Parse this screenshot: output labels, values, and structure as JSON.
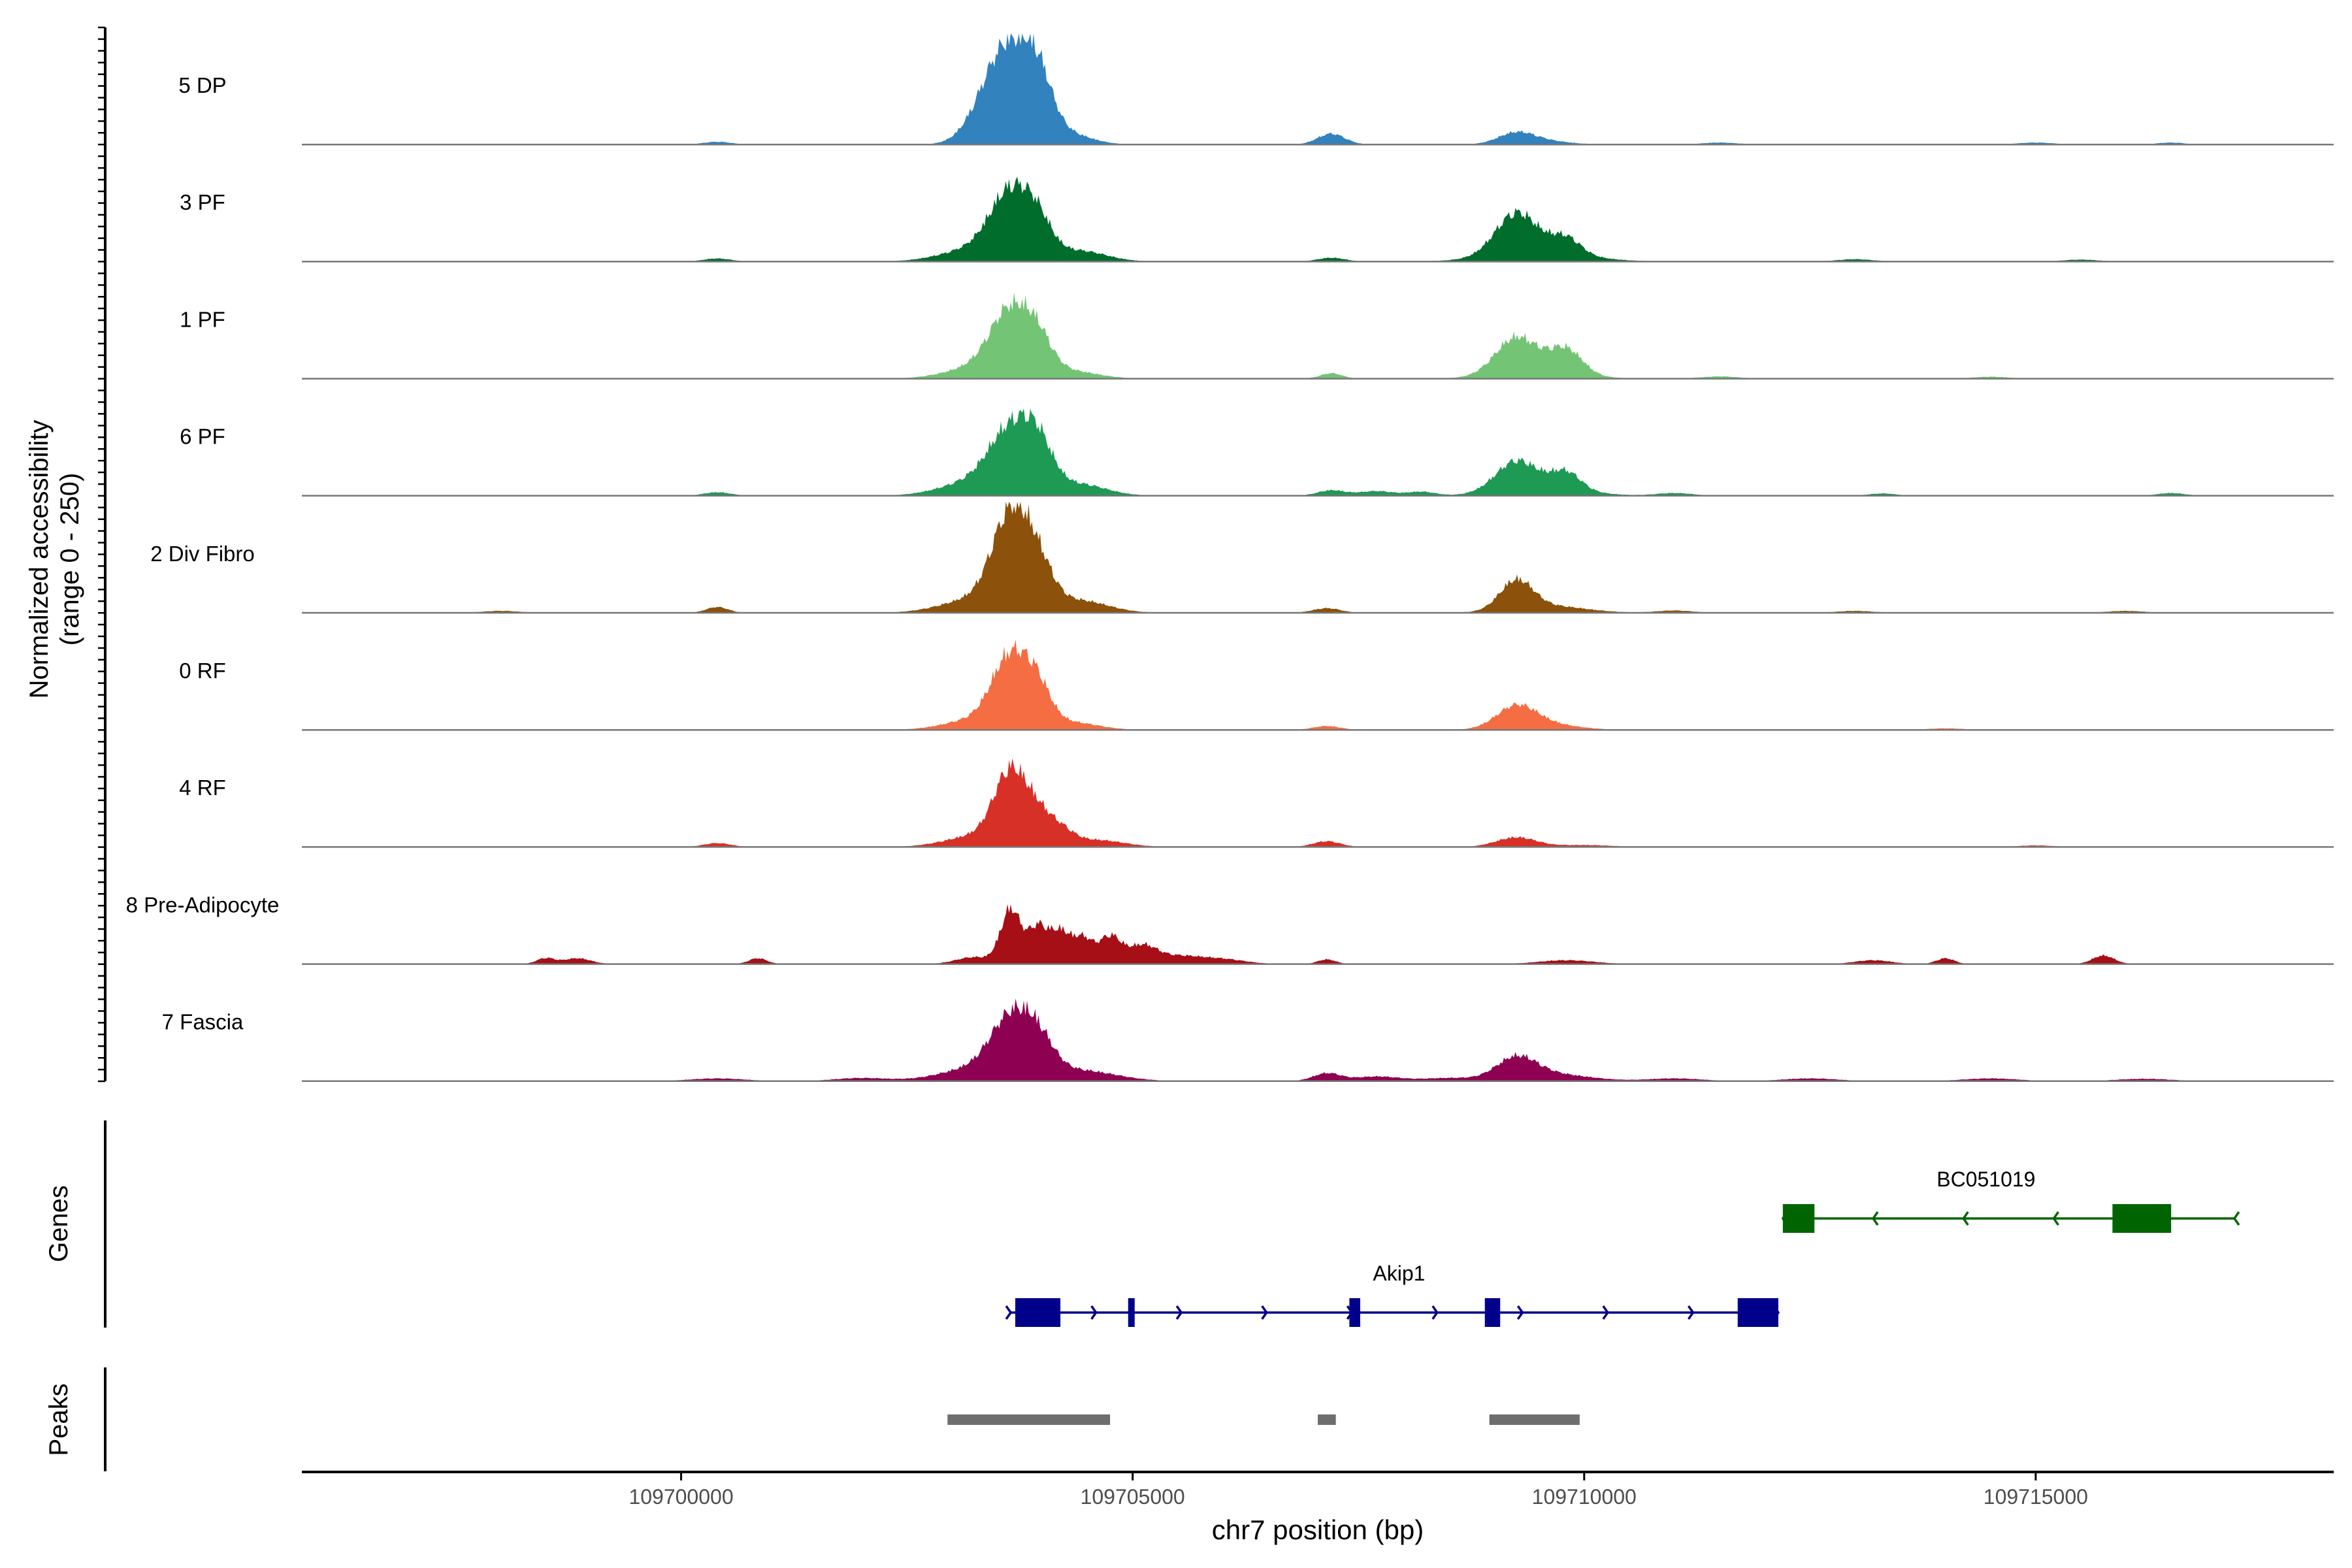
{
  "chart_data": {
    "type": "area",
    "title": "",
    "xlabel": "chr7 position (bp)",
    "ylabel_line1": "Normalized accessibility",
    "ylabel_line2": "(range 0 - 250)",
    "ylim": [
      0,
      250
    ],
    "xlim": [
      109695800,
      109718300
    ],
    "x_ticks": [
      109700000,
      109705000,
      109710000,
      109715000
    ],
    "x_tick_labels": [
      "109700000",
      "109705000",
      "109710000",
      "109715000"
    ],
    "grid": false,
    "panel_labels": {
      "genes": "Genes",
      "peaks": "Peaks"
    },
    "tracks": [
      {
        "name": "5 DP",
        "color": "#3182BD",
        "peaks": [
          [
            109703650,
            240,
            260
          ],
          [
            109703950,
            110,
            160
          ],
          [
            109703350,
            40,
            220
          ],
          [
            109704300,
            25,
            250
          ],
          [
            109707200,
            28,
            150
          ],
          [
            109709250,
            30,
            200
          ],
          [
            109709600,
            8,
            250
          ],
          [
            109700400,
            7,
            150
          ],
          [
            109711500,
            5,
            200
          ],
          [
            109715000,
            5,
            200
          ],
          [
            109716500,
            5,
            150
          ]
        ]
      },
      {
        "name": "3 PF",
        "color": "#006D2C",
        "peaks": [
          [
            109703650,
            160,
            220
          ],
          [
            109703950,
            75,
            160
          ],
          [
            109703300,
            35,
            380
          ],
          [
            109704400,
            28,
            300
          ],
          [
            109709250,
            105,
            230
          ],
          [
            109709800,
            42,
            160
          ],
          [
            109709500,
            25,
            500
          ],
          [
            109707200,
            10,
            150
          ],
          [
            109700400,
            8,
            150
          ],
          [
            109713000,
            6,
            200
          ],
          [
            109715500,
            5,
            200
          ]
        ]
      },
      {
        "name": "1 PF",
        "color": "#74C476",
        "peaks": [
          [
            109703650,
            160,
            220
          ],
          [
            109703950,
            75,
            160
          ],
          [
            109703300,
            30,
            350
          ],
          [
            109704300,
            20,
            300
          ],
          [
            109709250,
            95,
            230
          ],
          [
            109709800,
            65,
            180
          ],
          [
            109709500,
            15,
            450
          ],
          [
            109707200,
            14,
            120
          ],
          [
            109711500,
            6,
            200
          ],
          [
            109714500,
            5,
            200
          ]
        ]
      },
      {
        "name": "6 PF",
        "color": "#1E9A55",
        "peaks": [
          [
            109703650,
            145,
            230
          ],
          [
            109703950,
            105,
            170
          ],
          [
            109703300,
            40,
            380
          ],
          [
            109704400,
            30,
            300
          ],
          [
            109709250,
            75,
            230
          ],
          [
            109709800,
            45,
            160
          ],
          [
            109709550,
            20,
            450
          ],
          [
            109707200,
            14,
            150
          ],
          [
            109707700,
            12,
            200
          ],
          [
            109700400,
            9,
            150
          ],
          [
            109708200,
            10,
            150
          ],
          [
            109711000,
            7,
            200
          ],
          [
            109713300,
            6,
            150
          ],
          [
            109716500,
            7,
            150
          ]
        ]
      },
      {
        "name": "2 Div Fibro",
        "color": "#8C510A",
        "peaks": [
          [
            109703650,
            230,
            200
          ],
          [
            109703950,
            100,
            170
          ],
          [
            109703300,
            38,
            380
          ],
          [
            109704400,
            32,
            320
          ],
          [
            109709250,
            75,
            180
          ],
          [
            109709600,
            18,
            400
          ],
          [
            109700400,
            15,
            120
          ],
          [
            109707150,
            12,
            150
          ],
          [
            109698000,
            5,
            200
          ],
          [
            109711000,
            6,
            200
          ],
          [
            109713000,
            5,
            200
          ],
          [
            109716000,
            5,
            200
          ]
        ]
      },
      {
        "name": "0 RF",
        "color": "#F46D43",
        "peaks": [
          [
            109703650,
            175,
            200
          ],
          [
            109703950,
            85,
            150
          ],
          [
            109703300,
            28,
            350
          ],
          [
            109704300,
            20,
            300
          ],
          [
            109709250,
            55,
            220
          ],
          [
            109709550,
            15,
            350
          ],
          [
            109707150,
            10,
            150
          ],
          [
            109714000,
            4,
            200
          ]
        ]
      },
      {
        "name": "4 RF",
        "color": "#D73027",
        "peaks": [
          [
            109703650,
            180,
            180
          ],
          [
            109703950,
            65,
            150
          ],
          [
            109704200,
            38,
            150
          ],
          [
            109703300,
            30,
            350
          ],
          [
            109704600,
            18,
            300
          ],
          [
            109709250,
            25,
            220
          ],
          [
            109707150,
            15,
            150
          ],
          [
            109700400,
            10,
            150
          ],
          [
            109710000,
            5,
            300
          ],
          [
            109715000,
            4,
            200
          ]
        ]
      },
      {
        "name": "8 Pre-Adipocyte",
        "color": "#A50F15",
        "peaks": [
          [
            109703650,
            140,
            110
          ],
          [
            109703950,
            95,
            110
          ],
          [
            109704200,
            80,
            110
          ],
          [
            109704450,
            65,
            110
          ],
          [
            109704750,
            70,
            120
          ],
          [
            109705100,
            45,
            160
          ],
          [
            109703250,
            18,
            200
          ],
          [
            109705500,
            20,
            250
          ],
          [
            109706000,
            12,
            250
          ],
          [
            109698500,
            15,
            100
          ],
          [
            109698850,
            15,
            150
          ],
          [
            109700850,
            15,
            100
          ],
          [
            109707150,
            12,
            100
          ],
          [
            109709800,
            10,
            300
          ],
          [
            109713200,
            10,
            200
          ],
          [
            109714000,
            15,
            100
          ],
          [
            109715750,
            22,
            120
          ]
        ]
      },
      {
        "name": "7 Fascia",
        "color": "#8E0152",
        "peaks": [
          [
            109703650,
            135,
            220
          ],
          [
            109703950,
            80,
            180
          ],
          [
            109703300,
            35,
            400
          ],
          [
            109704400,
            28,
            400
          ],
          [
            109709250,
            55,
            220
          ],
          [
            109709650,
            18,
            400
          ],
          [
            109707150,
            20,
            150
          ],
          [
            109707700,
            12,
            250
          ],
          [
            109708500,
            8,
            300
          ],
          [
            109702000,
            8,
            300
          ],
          [
            109700400,
            7,
            300
          ],
          [
            109711000,
            7,
            300
          ],
          [
            109712500,
            7,
            300
          ],
          [
            109714500,
            7,
            300
          ],
          [
            109716200,
            6,
            300
          ]
        ]
      }
    ],
    "genes": [
      {
        "name": "Akip1",
        "strand": "+",
        "color": "#00008B",
        "start": 109703650,
        "end": 109712150,
        "exons": [
          [
            109703700,
            109704200
          ],
          [
            109704950,
            109705020
          ],
          [
            109707400,
            109707520
          ],
          [
            109708900,
            109709070
          ],
          [
            109711700,
            109712150
          ]
        ]
      },
      {
        "name": "BC051019",
        "strand": "-",
        "color": "#006400",
        "start": 109712200,
        "end": 109717200,
        "exons": [
          [
            109712200,
            109712550
          ],
          [
            109715850,
            109716500
          ]
        ]
      }
    ],
    "peak_regions": [
      [
        109702950,
        109704750
      ],
      [
        109707050,
        109707250
      ],
      [
        109708950,
        109709950
      ]
    ]
  }
}
